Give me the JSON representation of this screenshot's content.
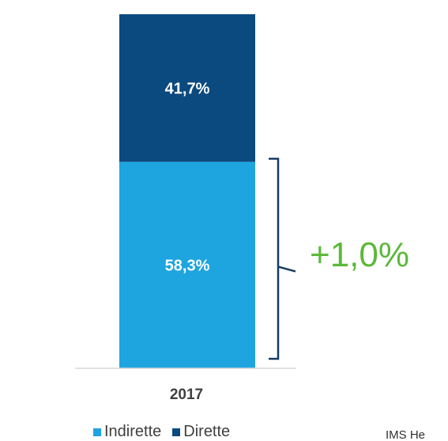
{
  "chart_data": {
    "type": "bar",
    "stacked": true,
    "categories": [
      "2017"
    ],
    "series": [
      {
        "name": "Indirette",
        "values": [
          58.3
        ],
        "label": "58,3%",
        "color": "#1ea5df"
      },
      {
        "name": "Dirette",
        "values": [
          41.7
        ],
        "label": "41,7%",
        "color": "#0b4a7f"
      }
    ],
    "ylim": [
      0,
      100
    ],
    "annotation": {
      "text": "+1,0%",
      "target_series": "Indirette",
      "color": "#5cb83a"
    },
    "legend_position": "bottom",
    "grid": false
  },
  "source": {
    "text": "IMS He"
  }
}
